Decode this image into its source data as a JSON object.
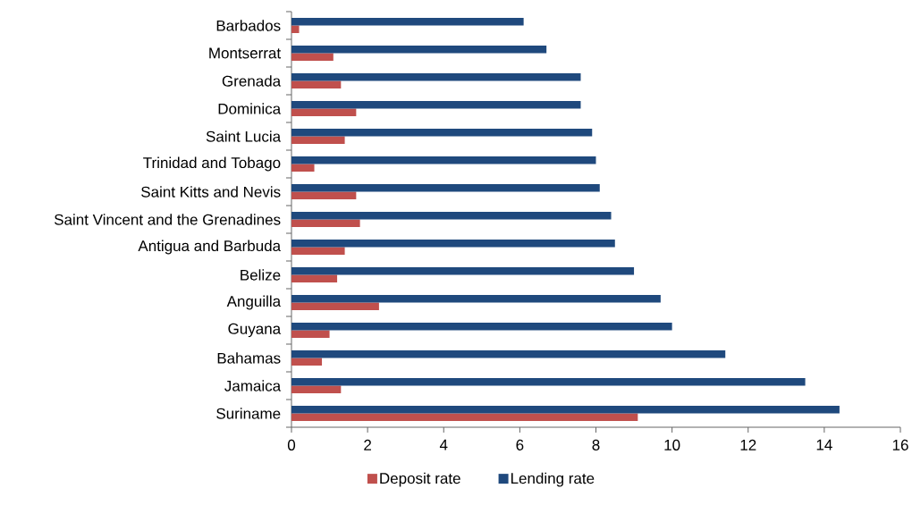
{
  "chart_data": {
    "type": "bar",
    "orientation": "horizontal",
    "categories": [
      "Barbados",
      "Montserrat",
      "Grenada",
      "Dominica",
      "Saint Lucia",
      "Trinidad and Tobago",
      "Saint Kitts and Nevis",
      "Saint Vincent and the Grenadines",
      "Antigua and Barbuda",
      "Belize",
      "Anguilla",
      "Guyana",
      "Bahamas",
      "Jamaica",
      "Suriname"
    ],
    "series": [
      {
        "name": "Deposit rate",
        "color": "#c0504d",
        "values": [
          0.2,
          1.1,
          1.3,
          1.7,
          1.4,
          0.6,
          1.7,
          1.8,
          1.4,
          1.2,
          2.3,
          1.0,
          0.8,
          1.3,
          9.1
        ]
      },
      {
        "name": "Lending rate",
        "color": "#1f497d",
        "values": [
          6.1,
          6.7,
          7.6,
          7.6,
          7.9,
          8.0,
          8.1,
          8.4,
          8.5,
          9.0,
          9.7,
          10.0,
          11.4,
          13.5,
          14.4
        ]
      }
    ],
    "xlim": [
      0,
      16
    ],
    "xticks": [
      0,
      2,
      4,
      6,
      8,
      10,
      12,
      14,
      16
    ],
    "legend": "bottom"
  }
}
